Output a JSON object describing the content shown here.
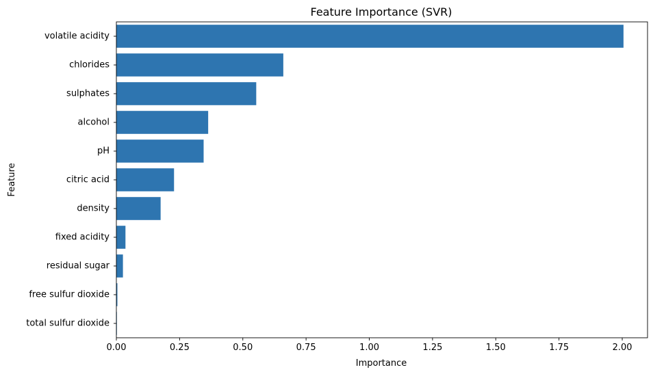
{
  "chart_data": {
    "type": "bar",
    "orientation": "horizontal",
    "title": "Feature Importance (SVR)",
    "xlabel": "Importance",
    "ylabel": "Feature",
    "xlim": [
      0,
      2.1
    ],
    "xticks": [
      "0.00",
      "0.25",
      "0.50",
      "0.75",
      "1.00",
      "1.25",
      "1.50",
      "1.75",
      "2.00"
    ],
    "categories": [
      "volatile acidity",
      "chlorides",
      "sulphates",
      "alcohol",
      "pH",
      "citric acid",
      "density",
      "fixed acidity",
      "residual sugar",
      "free sulfur dioxide",
      "total sulfur dioxide"
    ],
    "values": [
      2.005,
      0.66,
      0.553,
      0.363,
      0.345,
      0.228,
      0.175,
      0.036,
      0.026,
      0.004,
      0.002
    ],
    "bar_color": "#2e75b0",
    "grid": false,
    "legend": "none"
  }
}
